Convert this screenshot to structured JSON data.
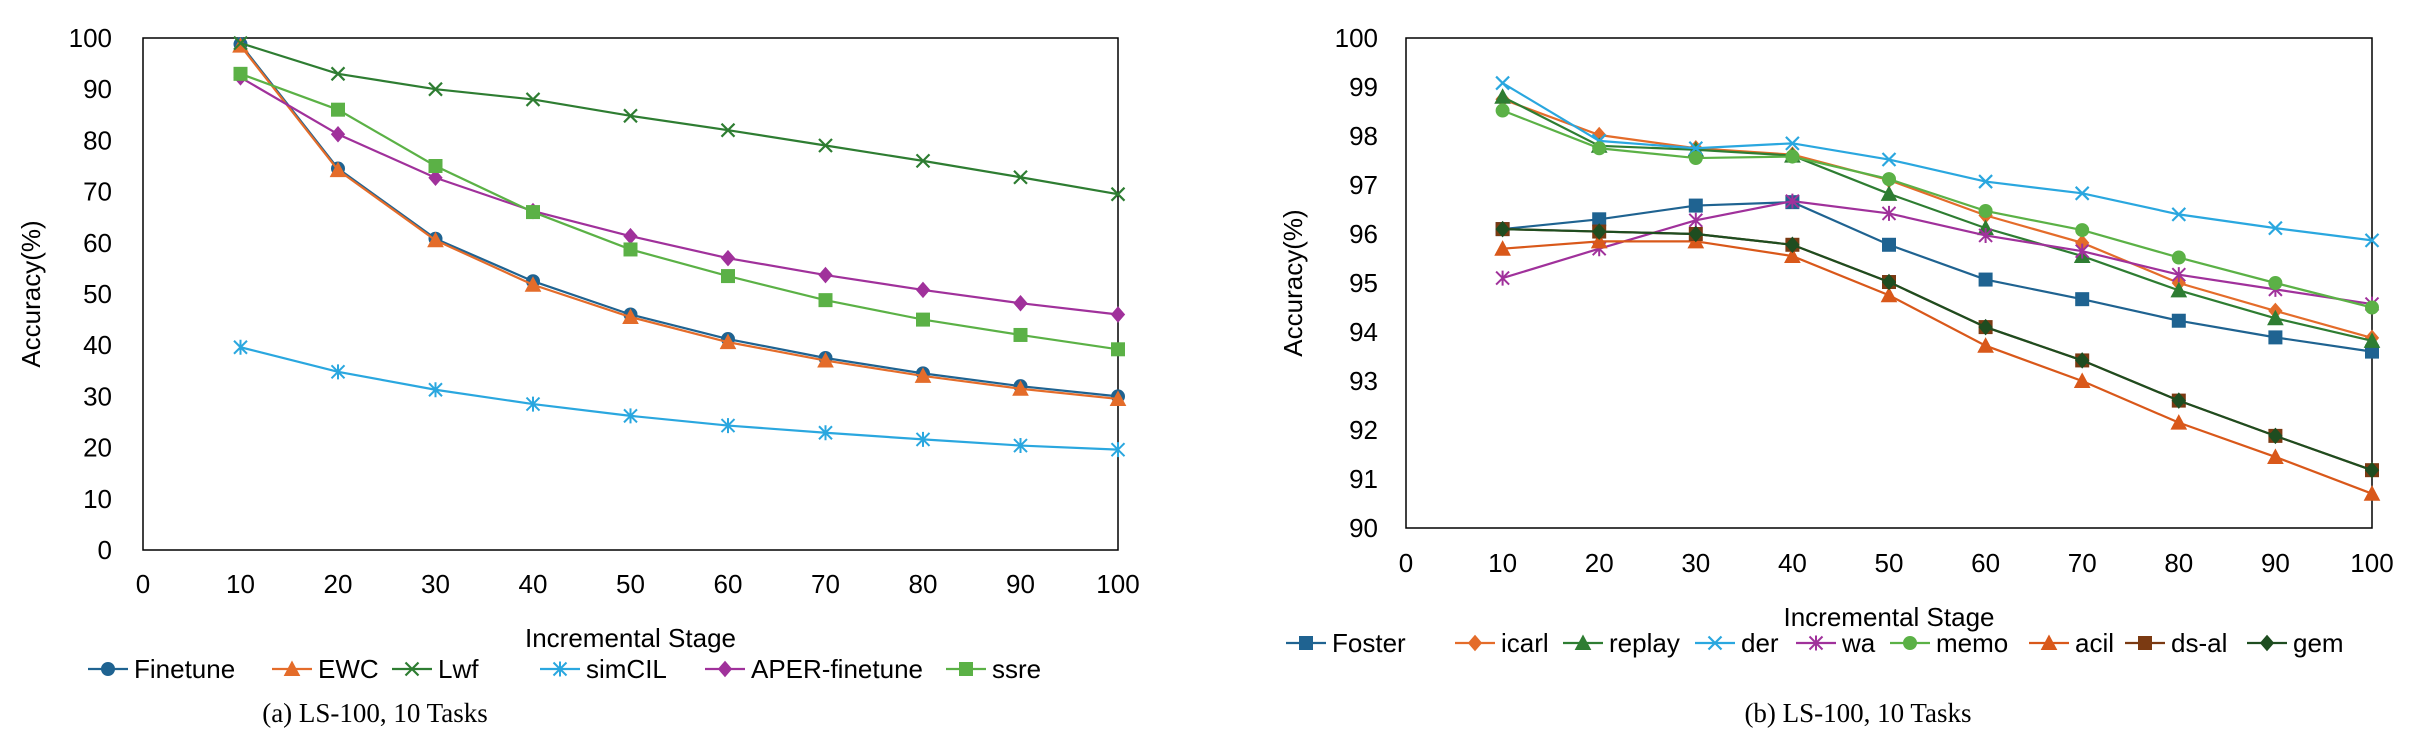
{
  "chart_data": [
    {
      "type": "line",
      "caption": "(a) LS-100, 10 Tasks",
      "xlabel": "Incremental Stage",
      "ylabel": "Accuracy(%)",
      "xlim": [
        0,
        100
      ],
      "ylim": [
        0,
        100
      ],
      "x_ticks": [
        0,
        10,
        20,
        30,
        40,
        50,
        60,
        70,
        80,
        90,
        100
      ],
      "y_ticks": [
        0,
        10,
        20,
        30,
        40,
        50,
        60,
        70,
        80,
        90,
        100
      ],
      "grid": false,
      "legend_position": "bottom",
      "x": [
        10,
        20,
        30,
        40,
        50,
        60,
        70,
        80,
        90,
        100
      ],
      "series": [
        {
          "name": "Finetune",
          "color": "#1f6391",
          "marker": "circle",
          "values": [
            98.8,
            74.5,
            60.8,
            52.5,
            46.0,
            41.2,
            37.5,
            34.5,
            32.0,
            30.0
          ]
        },
        {
          "name": "EWC",
          "color": "#e46c2a",
          "marker": "triangle",
          "values": [
            98.5,
            74.2,
            60.5,
            51.8,
            45.5,
            40.6,
            37.0,
            34.0,
            31.5,
            29.5
          ]
        },
        {
          "name": "Lwf",
          "color": "#2e7d32",
          "marker": "x",
          "values": [
            99.0,
            93.0,
            90.0,
            88.0,
            84.8,
            82.0,
            79.0,
            76.0,
            72.8,
            69.5
          ]
        },
        {
          "name": "simCIL",
          "color": "#2aa7df",
          "marker": "star",
          "values": [
            39.6,
            34.8,
            31.3,
            28.5,
            26.2,
            24.3,
            22.9,
            21.6,
            20.4,
            19.6
          ]
        },
        {
          "name": "APER-finetune",
          "color": "#a0319b",
          "marker": "diamond",
          "values": [
            92.3,
            81.2,
            72.7,
            66.2,
            61.3,
            57.0,
            53.7,
            50.8,
            48.2,
            46.0
          ]
        },
        {
          "name": "ssre",
          "color": "#5bb146",
          "marker": "square",
          "values": [
            93.0,
            86.0,
            75.0,
            66.0,
            58.7,
            53.5,
            48.8,
            45.0,
            42.0,
            39.2
          ]
        }
      ]
    },
    {
      "type": "line",
      "caption": "(b) LS-100, 10 Tasks",
      "xlabel": "Incremental Stage",
      "ylabel": "Accuracy(%)",
      "xlim": [
        0,
        100
      ],
      "ylim": [
        90,
        100
      ],
      "x_ticks": [
        0,
        10,
        20,
        30,
        40,
        50,
        60,
        70,
        80,
        90,
        100
      ],
      "y_ticks": [
        90,
        91,
        92,
        93,
        94,
        95,
        96,
        97,
        98,
        99,
        100
      ],
      "grid": false,
      "legend_position": "bottom",
      "x": [
        10,
        20,
        30,
        40,
        50,
        60,
        70,
        80,
        90,
        100
      ],
      "series": [
        {
          "name": "Foster",
          "color": "#1f6391",
          "marker": "square",
          "values": [
            96.1,
            96.3,
            96.58,
            96.65,
            95.78,
            95.07,
            94.67,
            94.23,
            93.89,
            93.6
          ]
        },
        {
          "name": "icarl",
          "color": "#e46c2a",
          "marker": "diamond",
          "values": [
            98.75,
            98.02,
            97.75,
            97.62,
            97.1,
            96.38,
            95.82,
            95.0,
            94.43,
            93.88
          ]
        },
        {
          "name": "replay",
          "color": "#2e7d32",
          "marker": "triangle",
          "values": [
            98.8,
            97.8,
            97.72,
            97.6,
            96.82,
            96.12,
            95.55,
            94.85,
            94.28,
            93.82
          ]
        },
        {
          "name": "der",
          "color": "#2aa7df",
          "marker": "x",
          "values": [
            99.08,
            97.9,
            97.75,
            97.85,
            97.52,
            97.07,
            96.83,
            96.4,
            96.12,
            95.87
          ]
        },
        {
          "name": "wa",
          "color": "#a0319b",
          "marker": "star",
          "values": [
            95.1,
            95.7,
            96.28,
            96.67,
            96.42,
            95.97,
            95.65,
            95.17,
            94.87,
            94.57
          ]
        },
        {
          "name": "memo",
          "color": "#5bb146",
          "marker": "circle",
          "values": [
            98.52,
            97.75,
            97.55,
            97.58,
            97.12,
            96.47,
            96.08,
            95.52,
            95.0,
            94.5
          ]
        },
        {
          "name": "acil",
          "color": "#d9581a",
          "marker": "triangle",
          "values": [
            95.7,
            95.85,
            95.85,
            95.55,
            94.75,
            93.72,
            93.0,
            92.15,
            91.45,
            90.7
          ]
        },
        {
          "name": "ds-al",
          "color": "#7b3a12",
          "marker": "square",
          "values": [
            96.1,
            96.05,
            96.0,
            95.78,
            95.02,
            94.1,
            93.42,
            92.6,
            91.88,
            91.18
          ]
        },
        {
          "name": "gem",
          "color": "#1e4d20",
          "marker": "diamond",
          "values": [
            96.1,
            96.05,
            96.0,
            95.78,
            95.02,
            94.1,
            93.42,
            92.6,
            91.88,
            91.18
          ]
        }
      ]
    }
  ]
}
